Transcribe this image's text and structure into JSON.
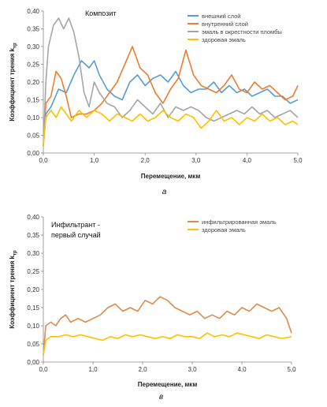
{
  "chart_data": [
    {
      "type": "line",
      "annotation": "Композит",
      "xlabel": "Перемещение, мкм",
      "ylabel": "Коэффициент трения k",
      "ylabel_sub": "тр",
      "xlim": [
        0,
        5
      ],
      "ylim": [
        0,
        0.4
      ],
      "xticks": [
        "0,0",
        "1,0",
        "2,0",
        "3,0",
        "4,0",
        "5,0"
      ],
      "yticks": [
        "0,00",
        "0,05",
        "0,10",
        "0,15",
        "0,20",
        "0,25",
        "0,30",
        "0,35",
        "0,40"
      ],
      "caption": "а",
      "legend_position": "top-right",
      "series": [
        {
          "name": "внешний слой",
          "color": "#5b9bd5",
          "x": [
            0.0,
            0.05,
            0.15,
            0.3,
            0.45,
            0.6,
            0.75,
            0.9,
            1.0,
            1.1,
            1.25,
            1.4,
            1.55,
            1.7,
            1.85,
            2.0,
            2.15,
            2.3,
            2.45,
            2.6,
            2.75,
            2.9,
            3.05,
            3.2,
            3.35,
            3.5,
            3.65,
            3.8,
            3.95,
            4.1,
            4.25,
            4.4,
            4.55,
            4.7,
            4.85,
            5.0
          ],
          "values": [
            0.02,
            0.11,
            0.13,
            0.18,
            0.17,
            0.22,
            0.26,
            0.24,
            0.26,
            0.22,
            0.18,
            0.16,
            0.15,
            0.2,
            0.22,
            0.19,
            0.21,
            0.22,
            0.2,
            0.23,
            0.19,
            0.17,
            0.18,
            0.18,
            0.2,
            0.17,
            0.19,
            0.17,
            0.18,
            0.16,
            0.17,
            0.18,
            0.16,
            0.16,
            0.14,
            0.15
          ]
        },
        {
          "name": "внутренний слой",
          "color": "#ed7d31",
          "x": [
            0.0,
            0.05,
            0.15,
            0.25,
            0.35,
            0.45,
            0.55,
            0.7,
            0.85,
            1.0,
            1.15,
            1.3,
            1.45,
            1.6,
            1.75,
            1.9,
            2.05,
            2.2,
            2.35,
            2.5,
            2.65,
            2.8,
            2.95,
            3.1,
            3.25,
            3.4,
            3.55,
            3.7,
            3.85,
            4.0,
            4.15,
            4.3,
            4.45,
            4.6,
            4.75,
            4.9,
            5.0
          ],
          "values": [
            0.02,
            0.14,
            0.16,
            0.23,
            0.21,
            0.16,
            0.1,
            0.11,
            0.11,
            0.12,
            0.14,
            0.17,
            0.2,
            0.25,
            0.3,
            0.24,
            0.22,
            0.17,
            0.14,
            0.18,
            0.21,
            0.29,
            0.22,
            0.19,
            0.18,
            0.17,
            0.19,
            0.22,
            0.18,
            0.17,
            0.2,
            0.18,
            0.19,
            0.17,
            0.15,
            0.16,
            0.19
          ]
        },
        {
          "name": "эмаль в окрестности пломбы",
          "color": "#a5a5a5",
          "x": [
            0.0,
            0.05,
            0.1,
            0.2,
            0.3,
            0.4,
            0.5,
            0.6,
            0.7,
            0.8,
            0.9,
            1.0,
            1.1,
            1.25,
            1.4,
            1.55,
            1.7,
            1.85,
            2.0,
            2.15,
            2.3,
            2.45,
            2.6,
            2.75,
            2.9,
            3.05,
            3.2,
            3.35,
            3.5,
            3.65,
            3.8,
            3.95,
            4.1,
            4.25,
            4.4,
            4.55,
            4.7,
            4.85,
            5.0
          ],
          "values": [
            0.02,
            0.2,
            0.3,
            0.36,
            0.38,
            0.35,
            0.38,
            0.34,
            0.27,
            0.17,
            0.13,
            0.2,
            0.17,
            0.14,
            0.13,
            0.1,
            0.12,
            0.15,
            0.13,
            0.11,
            0.14,
            0.1,
            0.13,
            0.12,
            0.13,
            0.12,
            0.1,
            0.09,
            0.1,
            0.11,
            0.12,
            0.11,
            0.13,
            0.11,
            0.12,
            0.1,
            0.11,
            0.12,
            0.1
          ]
        },
        {
          "name": "здоровая эмаль",
          "color": "#ffc000",
          "x": [
            0.0,
            0.05,
            0.15,
            0.25,
            0.35,
            0.45,
            0.55,
            0.7,
            0.85,
            1.0,
            1.15,
            1.3,
            1.45,
            1.6,
            1.75,
            1.9,
            2.05,
            2.2,
            2.35,
            2.5,
            2.65,
            2.8,
            2.95,
            3.1,
            3.25,
            3.4,
            3.55,
            3.7,
            3.85,
            4.0,
            4.15,
            4.3,
            4.45,
            4.6,
            4.75,
            4.9,
            5.0
          ],
          "values": [
            0.02,
            0.1,
            0.12,
            0.1,
            0.13,
            0.11,
            0.09,
            0.12,
            0.1,
            0.12,
            0.11,
            0.09,
            0.11,
            0.1,
            0.09,
            0.11,
            0.09,
            0.1,
            0.12,
            0.1,
            0.09,
            0.11,
            0.1,
            0.07,
            0.09,
            0.12,
            0.09,
            0.1,
            0.08,
            0.1,
            0.09,
            0.11,
            0.09,
            0.1,
            0.08,
            0.09,
            0.08
          ]
        }
      ]
    },
    {
      "type": "line",
      "annotation": [
        "Инфильтрант -",
        "первый случай"
      ],
      "xlabel": "Перемещение, мкм",
      "ylabel": "Коэффициент трения k",
      "ylabel_sub": "тр",
      "xlim": [
        0,
        5
      ],
      "ylim": [
        0,
        0.4
      ],
      "xticks": [
        "0,0",
        "1,0",
        "2,0",
        "3,0",
        "4,0",
        "5,0"
      ],
      "yticks": [
        "0,00",
        "0,05",
        "0,10",
        "0,15",
        "0,20",
        "0,25",
        "0,30",
        "0,35",
        "0,40"
      ],
      "caption": "в",
      "legend_position": "top-right",
      "series": [
        {
          "name": "инфильтрированная эмаль",
          "color": "#e08a4a",
          "x": [
            0.0,
            0.05,
            0.15,
            0.25,
            0.35,
            0.45,
            0.55,
            0.7,
            0.85,
            1.0,
            1.15,
            1.3,
            1.45,
            1.6,
            1.75,
            1.9,
            2.05,
            2.2,
            2.35,
            2.5,
            2.65,
            2.8,
            2.95,
            3.1,
            3.25,
            3.4,
            3.55,
            3.7,
            3.85,
            4.0,
            4.15,
            4.3,
            4.45,
            4.6,
            4.75,
            4.9,
            5.0
          ],
          "values": [
            0.02,
            0.1,
            0.11,
            0.1,
            0.12,
            0.13,
            0.11,
            0.12,
            0.11,
            0.12,
            0.13,
            0.15,
            0.16,
            0.14,
            0.15,
            0.14,
            0.17,
            0.16,
            0.18,
            0.17,
            0.15,
            0.14,
            0.13,
            0.14,
            0.12,
            0.13,
            0.12,
            0.14,
            0.13,
            0.15,
            0.14,
            0.16,
            0.15,
            0.14,
            0.15,
            0.12,
            0.08
          ]
        },
        {
          "name": "здоровая эмаль",
          "color": "#ffc000",
          "x": [
            0.0,
            0.05,
            0.15,
            0.3,
            0.45,
            0.6,
            0.75,
            0.9,
            1.05,
            1.2,
            1.35,
            1.5,
            1.65,
            1.8,
            1.95,
            2.1,
            2.25,
            2.4,
            2.55,
            2.7,
            2.85,
            3.0,
            3.15,
            3.3,
            3.45,
            3.6,
            3.75,
            3.9,
            4.05,
            4.2,
            4.35,
            4.5,
            4.65,
            4.8,
            5.0
          ],
          "values": [
            0.02,
            0.06,
            0.07,
            0.07,
            0.075,
            0.07,
            0.075,
            0.07,
            0.065,
            0.06,
            0.07,
            0.065,
            0.075,
            0.07,
            0.075,
            0.07,
            0.065,
            0.07,
            0.065,
            0.075,
            0.07,
            0.07,
            0.065,
            0.08,
            0.07,
            0.075,
            0.07,
            0.08,
            0.075,
            0.07,
            0.065,
            0.075,
            0.07,
            0.065,
            0.07
          ]
        }
      ]
    }
  ]
}
